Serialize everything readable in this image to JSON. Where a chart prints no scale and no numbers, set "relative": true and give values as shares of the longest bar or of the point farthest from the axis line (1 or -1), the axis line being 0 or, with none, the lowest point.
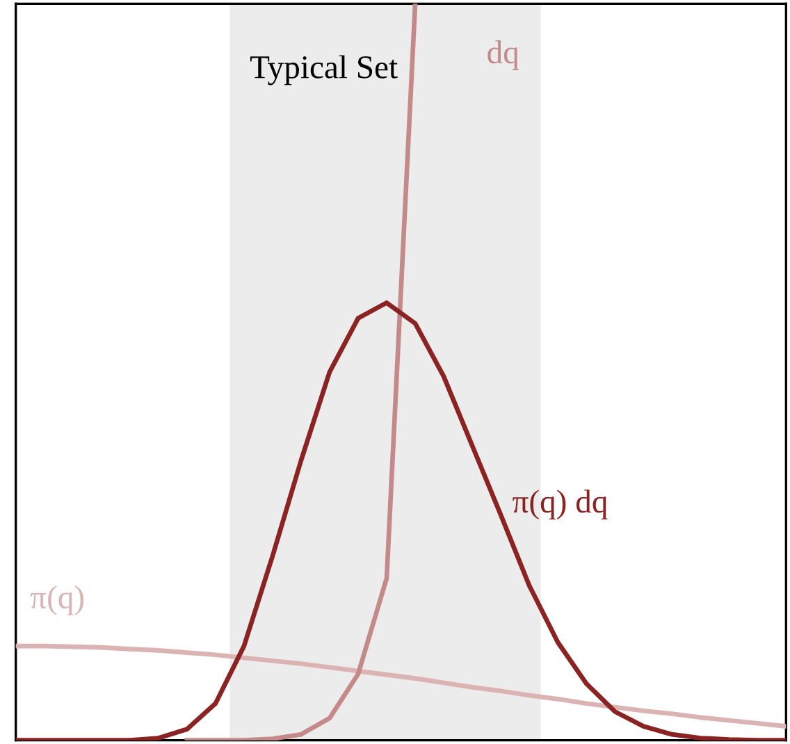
{
  "chart_data": {
    "type": "line",
    "relative": true,
    "categories": [
      null,
      null,
      null,
      null,
      null,
      null,
      null,
      null,
      null,
      null,
      null,
      null,
      null,
      null,
      null,
      null,
      null,
      null,
      null,
      null,
      null,
      null,
      null,
      null,
      null,
      null,
      null,
      null
    ],
    "series": [
      {
        "name": "π(q)",
        "color": "#dcb3b3",
        "values": [
          0.128,
          0.128,
          0.127,
          0.126,
          0.124,
          0.122,
          0.119,
          0.116,
          0.112,
          0.108,
          0.104,
          0.099,
          0.094,
          0.089,
          0.084,
          0.078,
          0.072,
          0.067,
          0.061,
          0.056,
          0.05,
          0.045,
          0.04,
          0.036,
          0.031,
          0.027,
          0.023,
          0.019
        ]
      },
      {
        "name": "dq",
        "color": "#c48a8a",
        "values": [
          null,
          null,
          null,
          null,
          null,
          null,
          0,
          0,
          0,
          0.002,
          0.008,
          0.03,
          0.09,
          0.22,
          1.0,
          null,
          null,
          null,
          null,
          null,
          null,
          null,
          null,
          null,
          null,
          null,
          null,
          null
        ]
      },
      {
        "name": "π(q) dq",
        "color": "#8b2323",
        "values": [
          0,
          0,
          0,
          0,
          0,
          0.003,
          0.015,
          0.05,
          0.128,
          0.25,
          0.38,
          0.5,
          0.573,
          0.594,
          0.566,
          0.494,
          0.4,
          0.306,
          0.21,
          0.133,
          0.077,
          0.039,
          0.019,
          0.008,
          0.003,
          0.001,
          0,
          0
        ]
      }
    ],
    "annotations": [
      "Typical Set"
    ],
    "grid": false,
    "legend": false
  }
}
